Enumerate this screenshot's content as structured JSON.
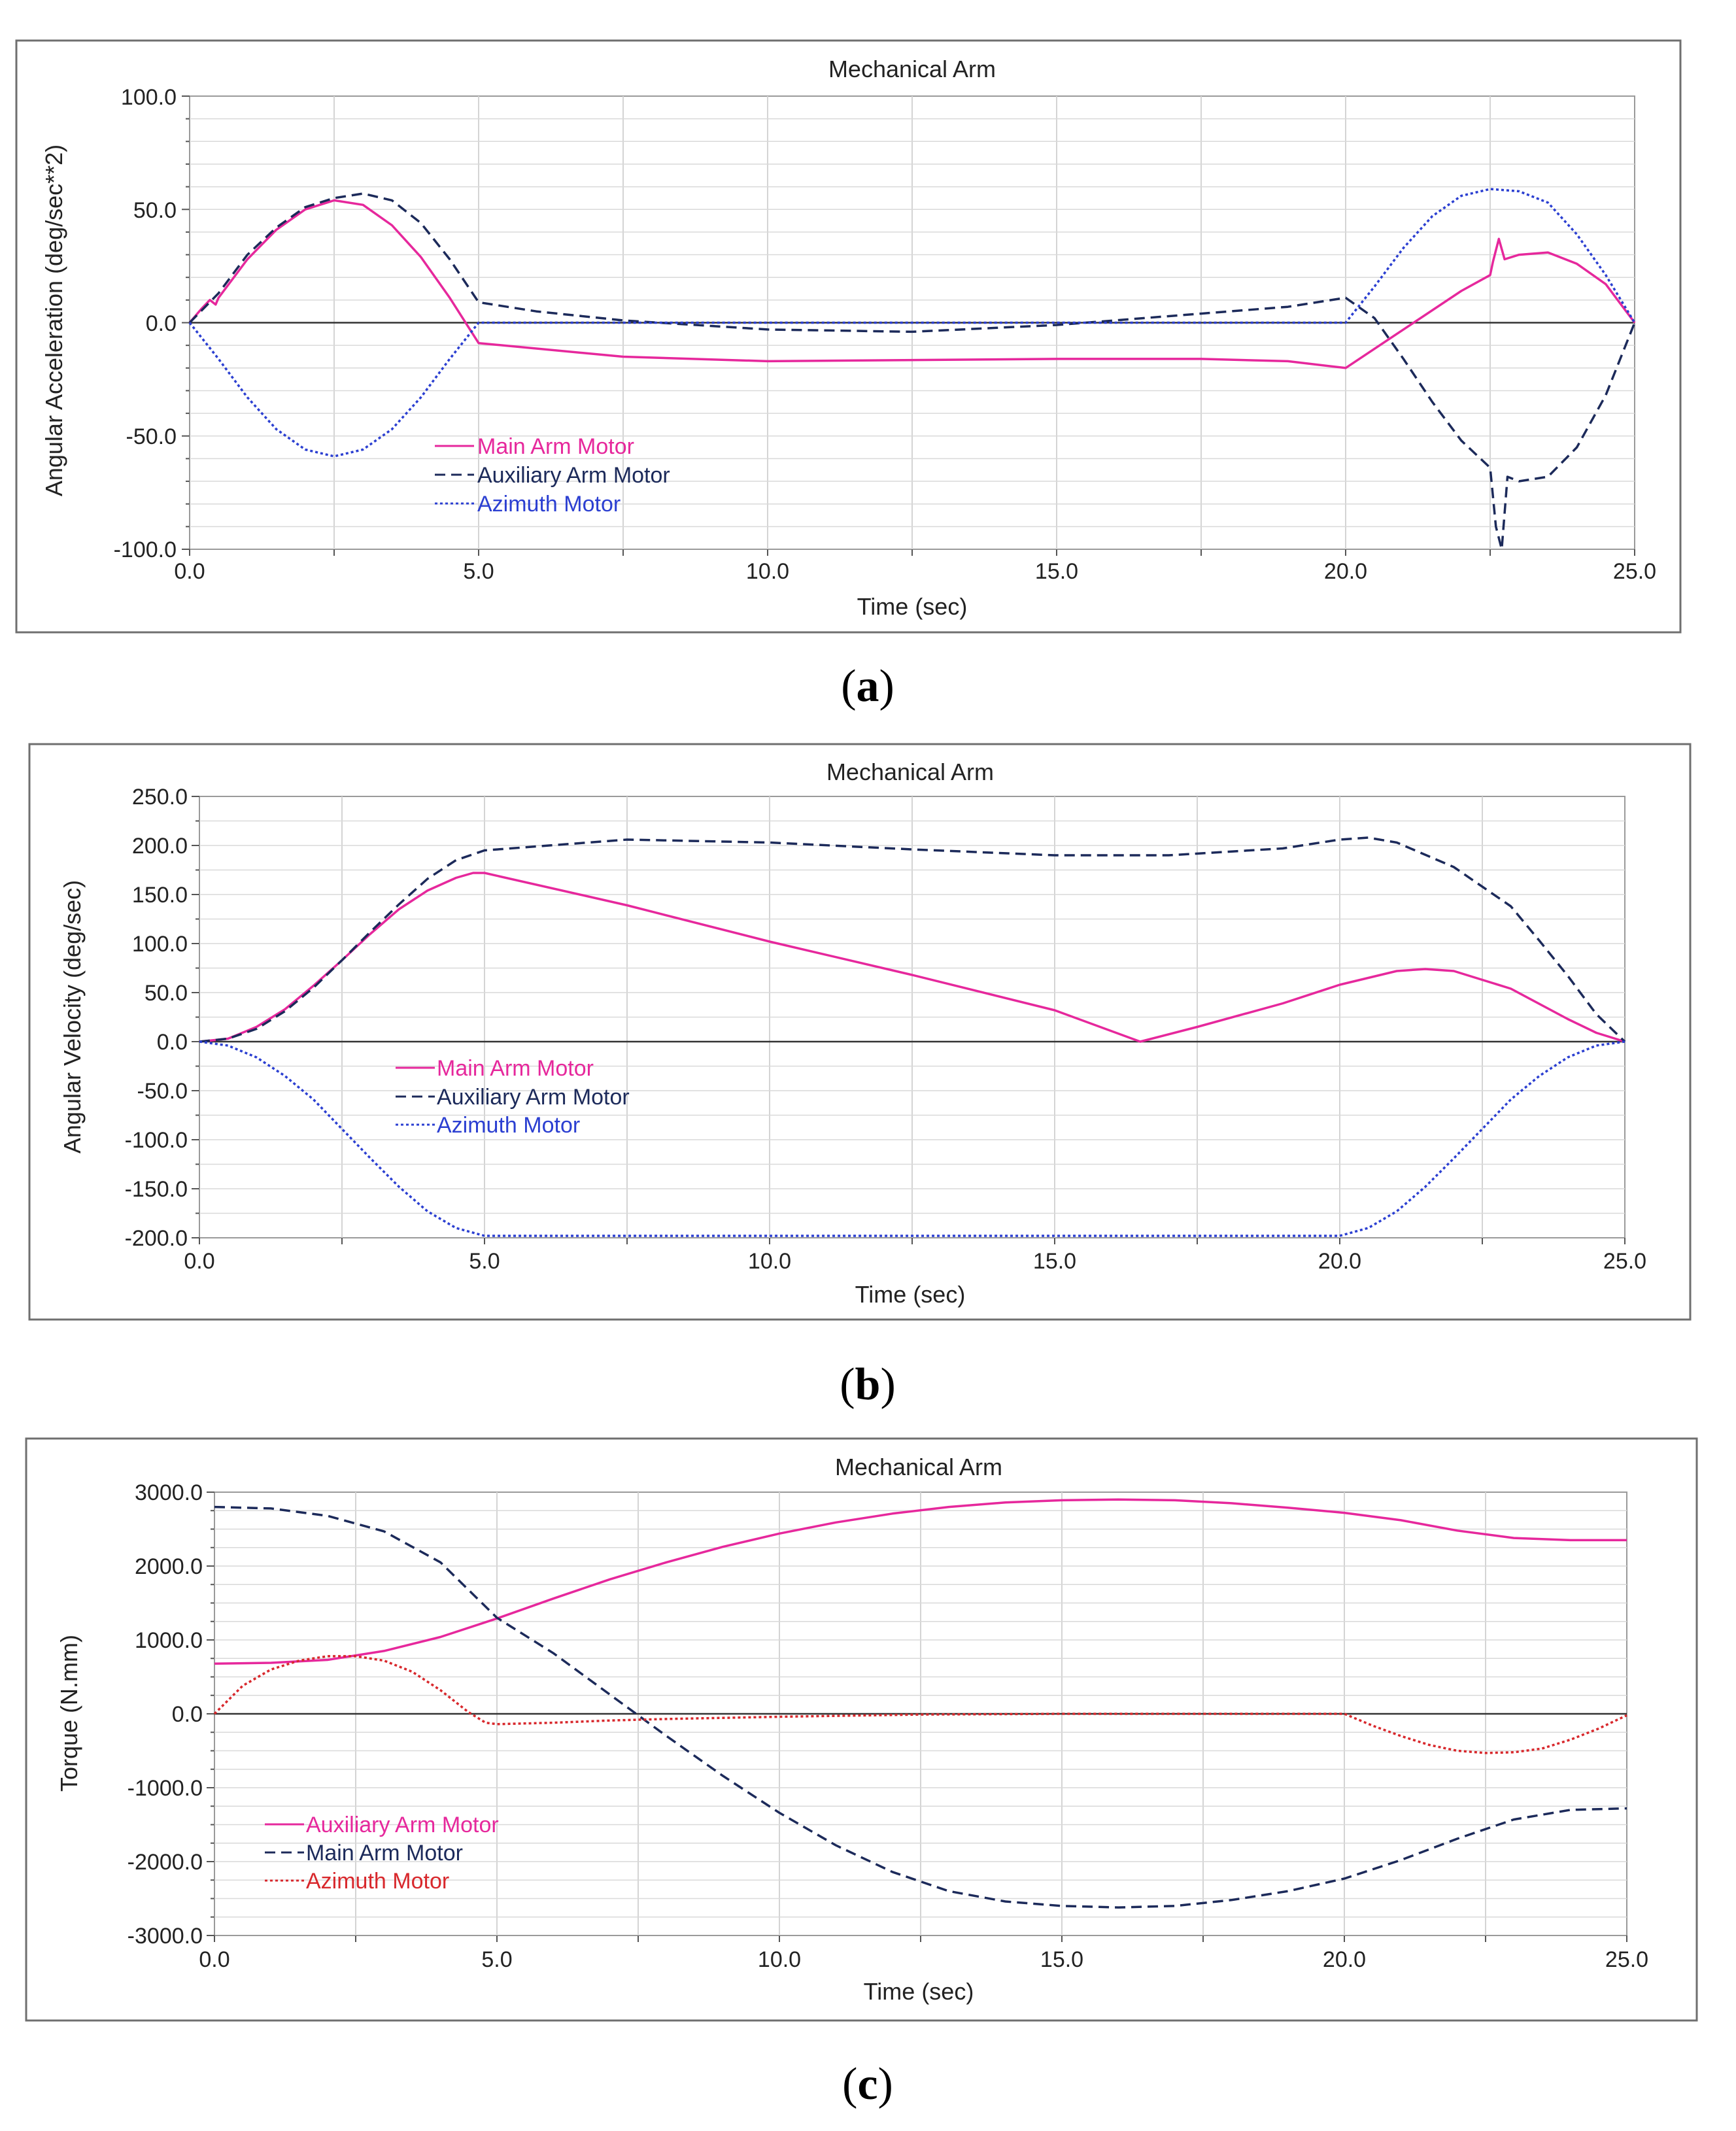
{
  "charts": [
    {
      "caption": "(a)",
      "title": "Mechanical Arm",
      "xlabel": "Time (sec)",
      "ylabel": "Angular Acceleration (deg/sec**2)",
      "xticks": [
        "0.0",
        "5.0",
        "10.0",
        "15.0",
        "20.0",
        "25.0"
      ],
      "yticks": [
        "100.0",
        "50.0",
        "0.0",
        "-50.0",
        "-100.0"
      ],
      "legend": [
        "Main Arm Motor",
        "Auxiliary Arm Motor",
        "Azimuth Motor"
      ]
    },
    {
      "caption": "(b)",
      "title": "Mechanical Arm",
      "xlabel": "Time (sec)",
      "ylabel": "Angular Velocity (deg/sec)",
      "xticks": [
        "0.0",
        "5.0",
        "10.0",
        "15.0",
        "20.0",
        "25.0"
      ],
      "yticks": [
        "250.0",
        "200.0",
        "150.0",
        "100.0",
        "50.0",
        "0.0",
        "-50.0",
        "-100.0",
        "-150.0",
        "-200.0"
      ],
      "legend": [
        "Main Arm Motor",
        "Auxiliary Arm Motor",
        "Azimuth Motor"
      ]
    },
    {
      "caption": "(c)",
      "title": "Mechanical Arm",
      "xlabel": "Time (sec)",
      "ylabel": "Torque (N.mm)",
      "xticks": [
        "0.0",
        "5.0",
        "10.0",
        "15.0",
        "20.0",
        "25.0"
      ],
      "yticks": [
        "3000.0",
        "2000.0",
        "1000.0",
        "0.0",
        "-1000.0",
        "-2000.0",
        "-3000.0"
      ],
      "legend": [
        "Auxiliary Arm Motor",
        "Main Arm Motor",
        "Azimuth Motor"
      ]
    }
  ],
  "chart_data": [
    {
      "type": "line",
      "title": "Mechanical Arm",
      "xlabel": "Time (sec)",
      "ylabel": "Angular Acceleration (deg/sec**2)",
      "xlim": [
        0,
        25
      ],
      "ylim": [
        -100,
        100
      ],
      "legend_position": "lower-left",
      "series": [
        {
          "name": "Main Arm Motor",
          "color": "#e6289c",
          "style": "solid",
          "points": [
            [
              0,
              0
            ],
            [
              0.2,
              6
            ],
            [
              0.35,
              10
            ],
            [
              0.45,
              8
            ],
            [
              0.5,
              11
            ],
            [
              1,
              28
            ],
            [
              1.5,
              41
            ],
            [
              2,
              50
            ],
            [
              2.5,
              54
            ],
            [
              3,
              52
            ],
            [
              3.5,
              43
            ],
            [
              4,
              29
            ],
            [
              4.5,
              11
            ],
            [
              5,
              -9
            ],
            [
              7.5,
              -15
            ],
            [
              10,
              -17
            ],
            [
              15,
              -16
            ],
            [
              17.5,
              -16
            ],
            [
              19,
              -17
            ],
            [
              20,
              -20
            ],
            [
              21,
              -3
            ],
            [
              22,
              14
            ],
            [
              22.5,
              21
            ],
            [
              22.55,
              27
            ],
            [
              22.65,
              37
            ],
            [
              22.75,
              28
            ],
            [
              23,
              30
            ],
            [
              23.5,
              31
            ],
            [
              24,
              26
            ],
            [
              24.5,
              17
            ],
            [
              25,
              0
            ]
          ]
        },
        {
          "name": "Auxiliary Arm Motor",
          "color": "#1c2a5a",
          "style": "dashed",
          "points": [
            [
              0,
              0
            ],
            [
              0.5,
              13
            ],
            [
              1,
              30
            ],
            [
              1.5,
              42
            ],
            [
              2,
              51
            ],
            [
              2.5,
              55
            ],
            [
              3,
              57
            ],
            [
              3.5,
              54
            ],
            [
              4,
              44
            ],
            [
              4.5,
              28
            ],
            [
              5,
              9
            ],
            [
              6,
              5
            ],
            [
              7.5,
              1
            ],
            [
              10,
              -3
            ],
            [
              12.5,
              -4
            ],
            [
              15,
              -1
            ],
            [
              17.5,
              4
            ],
            [
              19,
              7
            ],
            [
              20,
              11
            ],
            [
              20.5,
              2
            ],
            [
              21,
              -16
            ],
            [
              21.5,
              -35
            ],
            [
              22,
              -52
            ],
            [
              22.5,
              -64
            ],
            [
              22.6,
              -90
            ],
            [
              22.7,
              -100
            ],
            [
              22.8,
              -68
            ],
            [
              23,
              -70
            ],
            [
              23.5,
              -68
            ],
            [
              24,
              -55
            ],
            [
              24.5,
              -32
            ],
            [
              25,
              0
            ]
          ]
        },
        {
          "name": "Azimuth Motor",
          "color": "#2b3fd1",
          "style": "dotted",
          "points": [
            [
              0,
              0
            ],
            [
              0.5,
              -16
            ],
            [
              1,
              -33
            ],
            [
              1.5,
              -47
            ],
            [
              2,
              -56
            ],
            [
              2.5,
              -59
            ],
            [
              3,
              -56
            ],
            [
              3.5,
              -47
            ],
            [
              4,
              -33
            ],
            [
              4.5,
              -16
            ],
            [
              5,
              0
            ],
            [
              20,
              0
            ],
            [
              20.5,
              16
            ],
            [
              21,
              33
            ],
            [
              21.5,
              47
            ],
            [
              22,
              56
            ],
            [
              22.5,
              59
            ],
            [
              23,
              58
            ],
            [
              23.5,
              53
            ],
            [
              24,
              39
            ],
            [
              24.5,
              21
            ],
            [
              25,
              0
            ]
          ]
        }
      ]
    },
    {
      "type": "line",
      "title": "Mechanical Arm",
      "xlabel": "Time (sec)",
      "ylabel": "Angular Velocity (deg/sec)",
      "xlim": [
        0,
        25
      ],
      "ylim": [
        -200,
        250
      ],
      "legend_position": "left",
      "series": [
        {
          "name": "Main Arm Motor",
          "color": "#e6289c",
          "style": "solid",
          "points": [
            [
              0,
              0
            ],
            [
              0.5,
              3
            ],
            [
              1,
              15
            ],
            [
              1.5,
              33
            ],
            [
              2,
              57
            ],
            [
              2.5,
              83
            ],
            [
              3,
              110
            ],
            [
              3.5,
              135
            ],
            [
              4,
              154
            ],
            [
              4.5,
              167
            ],
            [
              4.8,
              172
            ],
            [
              5,
              172
            ],
            [
              7.5,
              139
            ],
            [
              10,
              102
            ],
            [
              12.5,
              68
            ],
            [
              15,
              32
            ],
            [
              16.5,
              0
            ],
            [
              17.5,
              15
            ],
            [
              19,
              39
            ],
            [
              20,
              58
            ],
            [
              21,
              72
            ],
            [
              21.5,
              74
            ],
            [
              22,
              72
            ],
            [
              23,
              54
            ],
            [
              24,
              23
            ],
            [
              24.5,
              9
            ],
            [
              25,
              0
            ]
          ]
        },
        {
          "name": "Auxiliary Arm Motor",
          "color": "#1c2a5a",
          "style": "dashed",
          "points": [
            [
              0,
              0
            ],
            [
              0.5,
              3
            ],
            [
              1,
              13
            ],
            [
              1.5,
              31
            ],
            [
              2,
              55
            ],
            [
              2.5,
              83
            ],
            [
              3,
              112
            ],
            [
              3.5,
              140
            ],
            [
              4,
              166
            ],
            [
              4.5,
              185
            ],
            [
              5,
              195
            ],
            [
              7.5,
              206
            ],
            [
              10,
              203
            ],
            [
              12.5,
              196
            ],
            [
              15,
              190
            ],
            [
              17,
              190
            ],
            [
              19,
              197
            ],
            [
              20,
              206
            ],
            [
              20.5,
              208
            ],
            [
              21,
              203
            ],
            [
              22,
              178
            ],
            [
              23,
              138
            ],
            [
              23.5,
              103
            ],
            [
              24,
              67
            ],
            [
              24.5,
              28
            ],
            [
              25,
              0
            ]
          ]
        },
        {
          "name": "Azimuth Motor",
          "color": "#2b3fd1",
          "style": "dotted",
          "points": [
            [
              0,
              0
            ],
            [
              0.5,
              -4
            ],
            [
              1,
              -16
            ],
            [
              1.5,
              -35
            ],
            [
              2,
              -59
            ],
            [
              2.5,
              -89
            ],
            [
              3,
              -119
            ],
            [
              3.5,
              -148
            ],
            [
              4,
              -173
            ],
            [
              4.5,
              -190
            ],
            [
              5,
              -198
            ],
            [
              20,
              -198
            ],
            [
              20.5,
              -190
            ],
            [
              21,
              -173
            ],
            [
              21.5,
              -148
            ],
            [
              22,
              -119
            ],
            [
              22.5,
              -89
            ],
            [
              23,
              -59
            ],
            [
              23.5,
              -35
            ],
            [
              24,
              -16
            ],
            [
              24.5,
              -4
            ],
            [
              25,
              0
            ]
          ]
        }
      ]
    },
    {
      "type": "line",
      "title": "Mechanical Arm",
      "xlabel": "Time (sec)",
      "ylabel": "Torque (N.mm)",
      "xlim": [
        0,
        25
      ],
      "ylim": [
        -3000,
        3000
      ],
      "legend_position": "lower-left",
      "series": [
        {
          "name": "Auxiliary Arm Motor",
          "color": "#e6289c",
          "style": "solid",
          "points": [
            [
              0,
              680
            ],
            [
              1,
              690
            ],
            [
              2,
              730
            ],
            [
              3,
              850
            ],
            [
              4,
              1040
            ],
            [
              5,
              1290
            ],
            [
              6,
              1560
            ],
            [
              7,
              1820
            ],
            [
              8,
              2050
            ],
            [
              9,
              2260
            ],
            [
              10,
              2440
            ],
            [
              11,
              2590
            ],
            [
              12,
              2710
            ],
            [
              13,
              2800
            ],
            [
              14,
              2860
            ],
            [
              15,
              2890
            ],
            [
              16,
              2900
            ],
            [
              17,
              2890
            ],
            [
              18,
              2850
            ],
            [
              19,
              2790
            ],
            [
              20,
              2720
            ],
            [
              21,
              2620
            ],
            [
              22,
              2480
            ],
            [
              23,
              2380
            ],
            [
              24,
              2350
            ],
            [
              25,
              2350
            ]
          ]
        },
        {
          "name": "Main Arm Motor",
          "color": "#1c2a5a",
          "style": "dashed",
          "points": [
            [
              0,
              2800
            ],
            [
              1,
              2780
            ],
            [
              2,
              2680
            ],
            [
              3,
              2470
            ],
            [
              4,
              2050
            ],
            [
              5,
              1300
            ],
            [
              6,
              820
            ],
            [
              7,
              260
            ],
            [
              8,
              -300
            ],
            [
              9,
              -840
            ],
            [
              10,
              -1340
            ],
            [
              11,
              -1780
            ],
            [
              12,
              -2140
            ],
            [
              13,
              -2400
            ],
            [
              14,
              -2540
            ],
            [
              15,
              -2600
            ],
            [
              16,
              -2620
            ],
            [
              17,
              -2600
            ],
            [
              18,
              -2520
            ],
            [
              19,
              -2400
            ],
            [
              20,
              -2230
            ],
            [
              21,
              -1980
            ],
            [
              22,
              -1690
            ],
            [
              23,
              -1430
            ],
            [
              24,
              -1300
            ],
            [
              25,
              -1280
            ]
          ]
        },
        {
          "name": "Azimuth Motor",
          "color": "#d8282c",
          "style": "dotted",
          "points": [
            [
              0,
              0
            ],
            [
              0.5,
              380
            ],
            [
              1,
              600
            ],
            [
              1.5,
              720
            ],
            [
              2,
              780
            ],
            [
              2.5,
              780
            ],
            [
              3,
              720
            ],
            [
              3.5,
              570
            ],
            [
              4,
              320
            ],
            [
              4.5,
              20
            ],
            [
              4.8,
              -120
            ],
            [
              5,
              -140
            ],
            [
              6,
              -120
            ],
            [
              7,
              -90
            ],
            [
              8,
              -70
            ],
            [
              10,
              -40
            ],
            [
              12.5,
              -10
            ],
            [
              15,
              0
            ],
            [
              20,
              0
            ],
            [
              20.5,
              -160
            ],
            [
              21,
              -300
            ],
            [
              21.5,
              -420
            ],
            [
              22,
              -500
            ],
            [
              22.5,
              -530
            ],
            [
              23,
              -520
            ],
            [
              23.5,
              -470
            ],
            [
              24,
              -350
            ],
            [
              24.5,
              -200
            ],
            [
              25,
              -20
            ]
          ]
        }
      ]
    }
  ]
}
